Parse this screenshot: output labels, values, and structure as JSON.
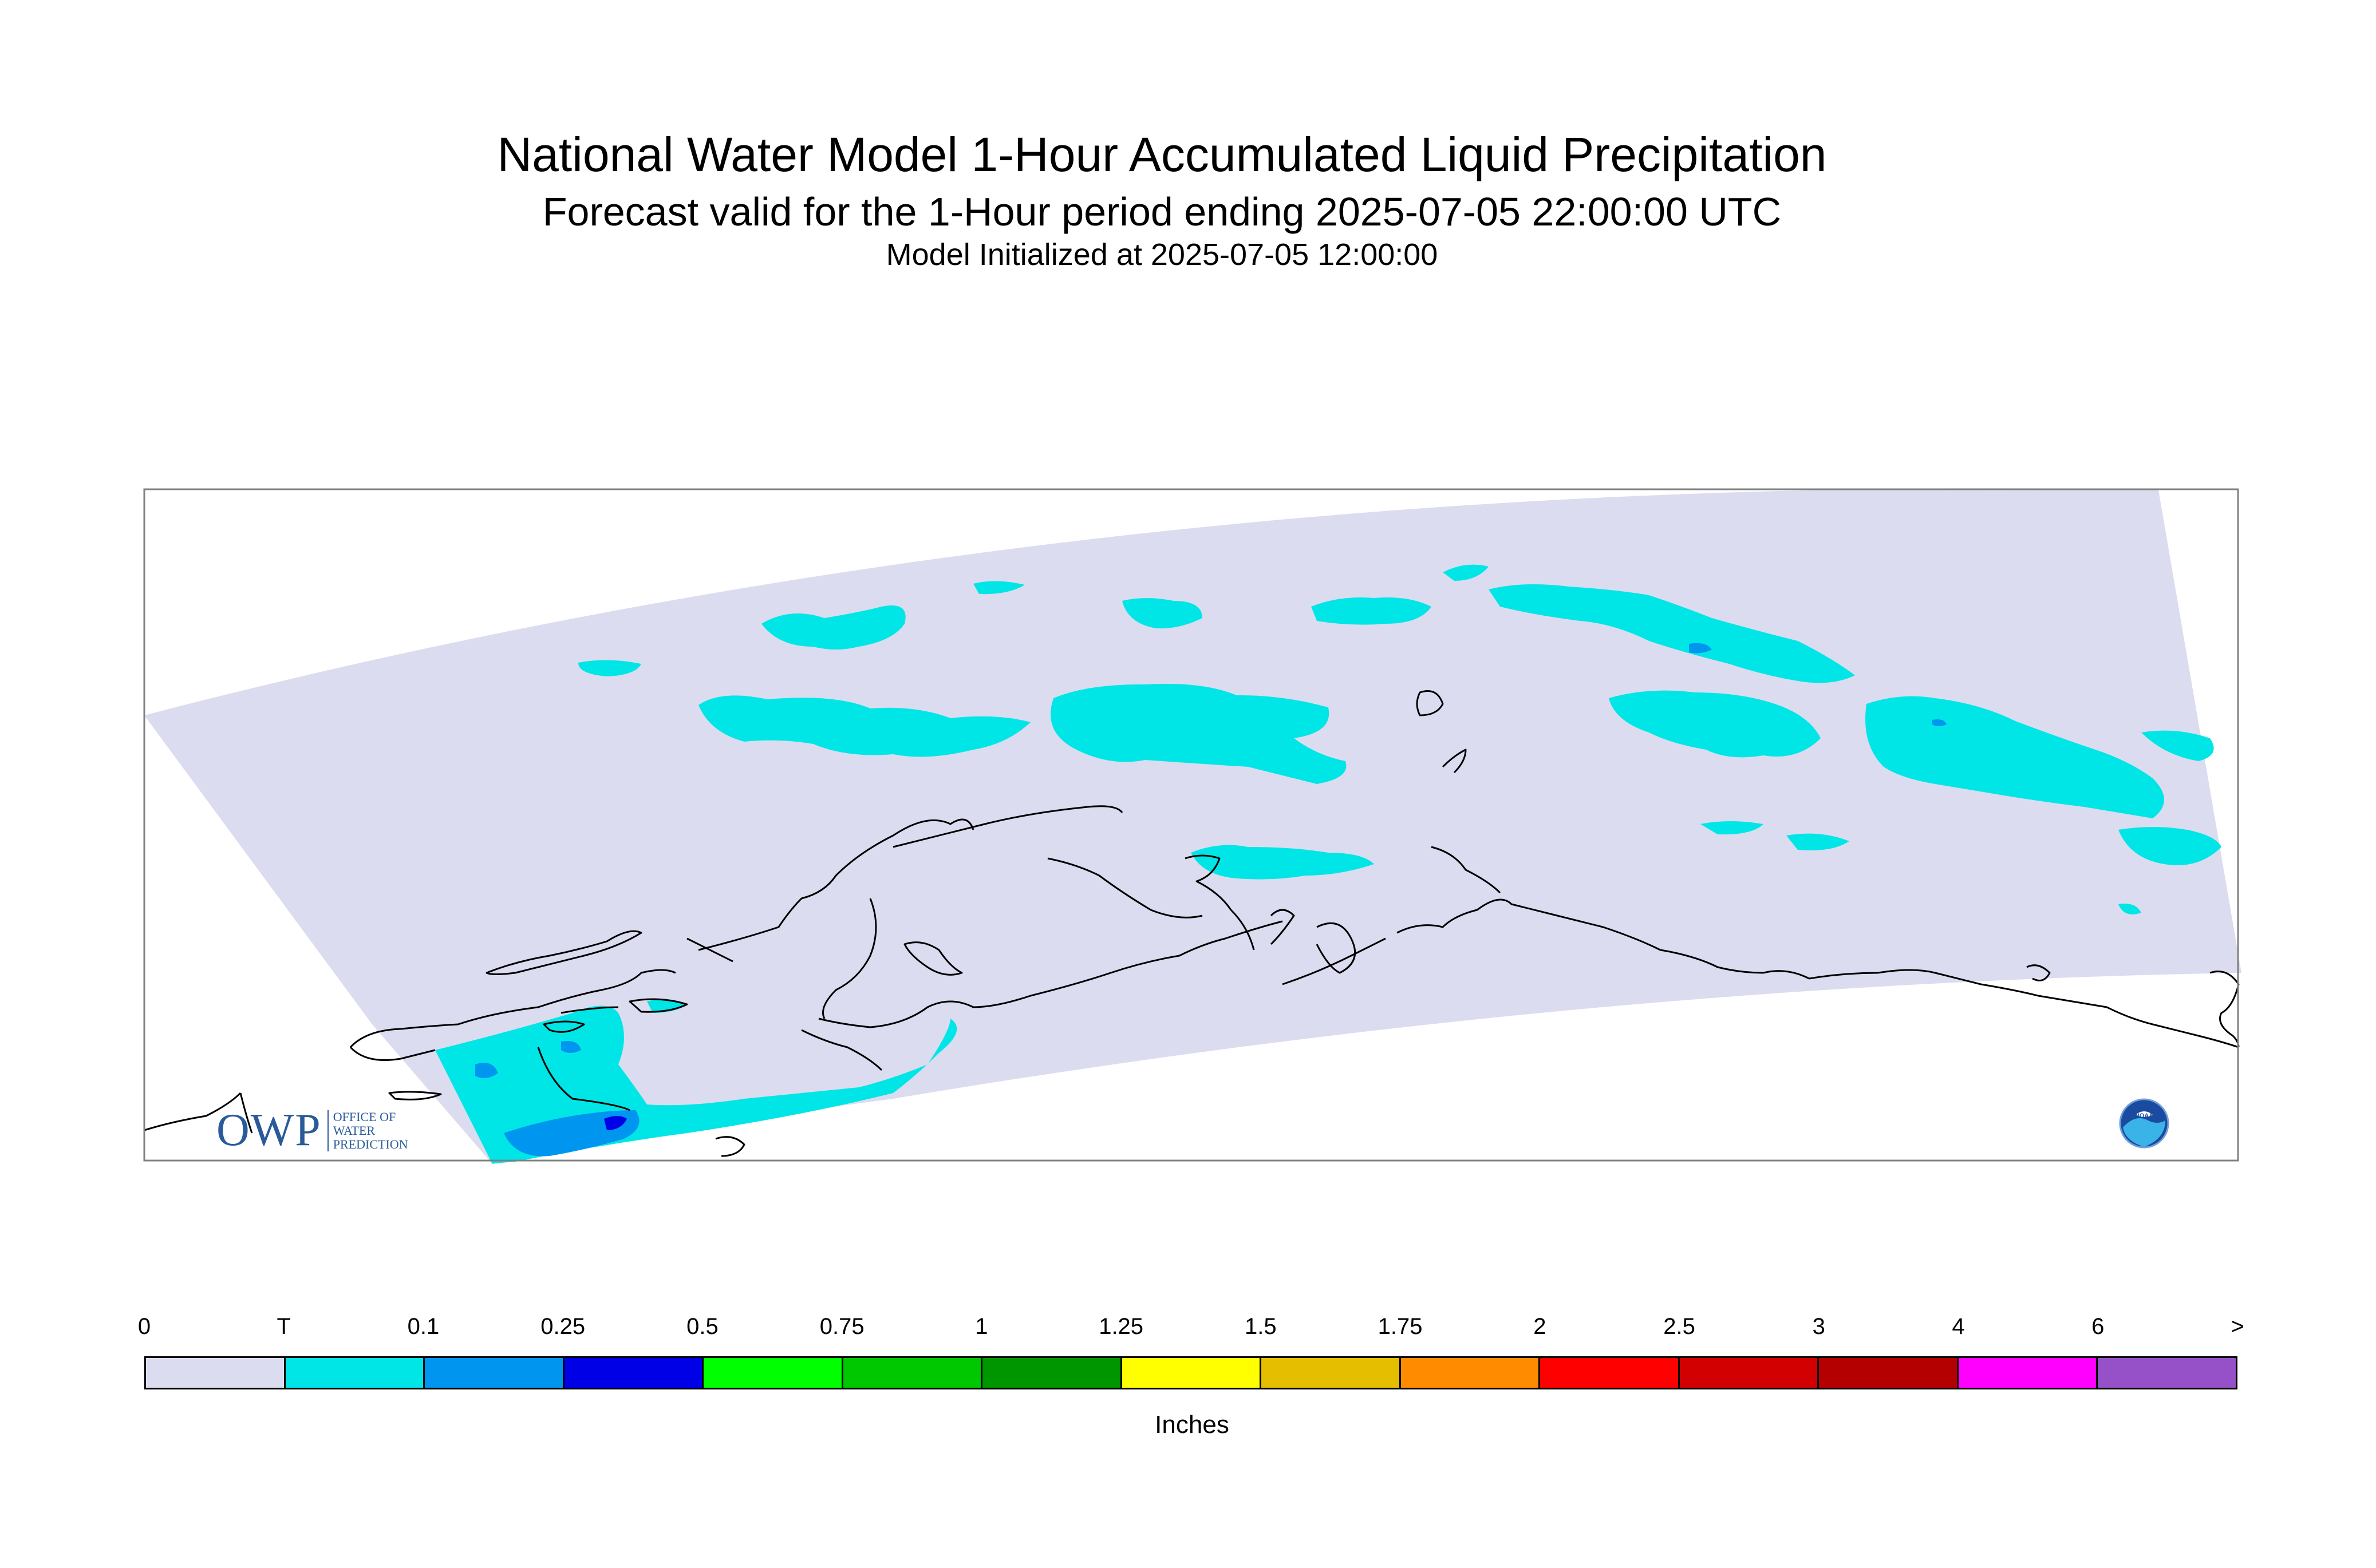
{
  "title": "National Water Model 1-Hour Accumulated Liquid Precipitation",
  "subtitle": "Forecast valid for the 1-Hour period ending 2025-07-05 22:00:00 UTC",
  "initialized": "Model Initialized at 2025-07-05 12:00:00",
  "legend": {
    "units": "Inches",
    "labels": [
      "0",
      "T",
      "0.1",
      "0.25",
      "0.5",
      "0.75",
      "1",
      "1.25",
      "1.5",
      "1.75",
      "2",
      "2.5",
      "3",
      "4",
      "6",
      ">"
    ],
    "colors": [
      "#dcdcf0",
      "#00e6e6",
      "#0096f0",
      "#0000e6",
      "#00ff00",
      "#00c800",
      "#009600",
      "#ffff00",
      "#e6be00",
      "#ff8c00",
      "#ff0000",
      "#d20000",
      "#b40000",
      "#ff00ff",
      "#9650c8"
    ]
  },
  "logos": {
    "owp": {
      "big": "OWP",
      "line1": "OFFICE OF",
      "line2": "WATER",
      "line3": "PREDICTION"
    },
    "noaa": "NOAA"
  },
  "colors": {
    "domain_fill": "#dcdcf0",
    "trace": "#00e6e6",
    "light": "#0096f0",
    "moderate": "#0000e6",
    "coastline": "#000000"
  }
}
